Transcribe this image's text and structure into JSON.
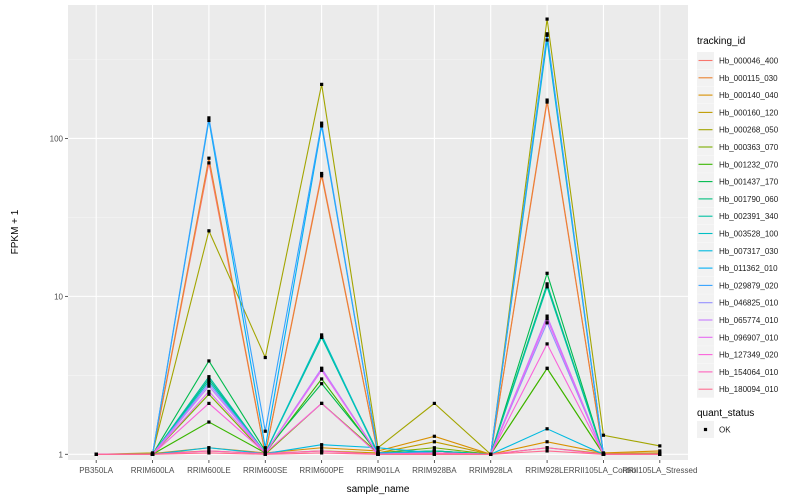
{
  "chart_data": {
    "type": "line",
    "yscale": "log10",
    "xlabel": "sample_name",
    "ylabel": "FPKM + 1",
    "ylim": [
      0.92,
      700
    ],
    "yticks": [
      1,
      10,
      100
    ],
    "ytick_labels": [
      "1",
      "10",
      "100"
    ],
    "categories": [
      "PB350LA",
      "RRIM600LA",
      "RRIM600LE",
      "RRIM600SE",
      "RRIM600PE",
      "RRIM901LA",
      "RRIM928BA",
      "RRIM928LA",
      "RRIM928LE",
      "RRII105LA_Control",
      "RRII105LA_Stressed"
    ],
    "legend_title": "tracking_id",
    "shape_legend": {
      "title": "quant_status",
      "items": [
        "OK"
      ]
    },
    "series": [
      {
        "name": "Hb_000046_400",
        "color": "#F8766D",
        "values": [
          1,
          1,
          70,
          1,
          60,
          1,
          1,
          1,
          170,
          1,
          1
        ]
      },
      {
        "name": "Hb_000115_030",
        "color": "#EA8331",
        "values": [
          1,
          1,
          75,
          1,
          58,
          1,
          1,
          1,
          175,
          1,
          1
        ]
      },
      {
        "name": "Hb_000140_040",
        "color": "#D89000",
        "values": [
          1,
          1.01,
          1.1,
          1.02,
          1.1,
          1.05,
          1.3,
          1,
          1.2,
          1.02,
          1.05
        ]
      },
      {
        "name": "Hb_000160_120",
        "color": "#C09B00",
        "values": [
          1,
          1.01,
          1.05,
          1.01,
          1.05,
          1.02,
          1.2,
          1,
          1.1,
          1.01,
          1.02
        ]
      },
      {
        "name": "Hb_000268_050",
        "color": "#A3A500",
        "values": [
          1,
          1.02,
          26,
          4.1,
          220,
          1.1,
          2.1,
          1,
          570,
          1.32,
          1.13
        ]
      },
      {
        "name": "Hb_000363_070",
        "color": "#7CAE00",
        "values": [
          1,
          1,
          2.4,
          1,
          2.1,
          1.02,
          1.1,
          1,
          3.5,
          1,
          1
        ]
      },
      {
        "name": "Hb_001232_070",
        "color": "#39B600",
        "values": [
          1,
          1,
          1.6,
          1.02,
          3,
          1,
          1.05,
          1,
          3.5,
          1,
          1
        ]
      },
      {
        "name": "Hb_001437_170",
        "color": "#00BB4E",
        "values": [
          1,
          1,
          3.9,
          1.05,
          2.8,
          1.02,
          1.05,
          1,
          14,
          1,
          1
        ]
      },
      {
        "name": "Hb_001790_060",
        "color": "#00BF7D",
        "values": [
          1,
          1,
          3,
          1.02,
          5.5,
          1.02,
          1.05,
          1,
          12,
          1,
          1
        ]
      },
      {
        "name": "Hb_002391_340",
        "color": "#00C1A3",
        "values": [
          1,
          1,
          3.1,
          1.02,
          5.5,
          1,
          1.05,
          1,
          11.5,
          1,
          1
        ]
      },
      {
        "name": "Hb_003528_100",
        "color": "#00BFC4",
        "values": [
          1,
          1,
          2.9,
          1.02,
          5.7,
          1,
          1.02,
          1,
          420,
          1,
          1
        ]
      },
      {
        "name": "Hb_007317_030",
        "color": "#00BAE0",
        "values": [
          1,
          1,
          1.1,
          1.01,
          1.15,
          1.1,
          1.02,
          1,
          1.45,
          1,
          1
        ]
      },
      {
        "name": "Hb_011362_010",
        "color": "#00B0F6",
        "values": [
          1,
          1,
          130,
          1.1,
          120,
          1.02,
          1.02,
          1,
          450,
          1,
          1
        ]
      },
      {
        "name": "Hb_029879_020",
        "color": "#35A2FF",
        "values": [
          1,
          1,
          135,
          1.4,
          125,
          1.02,
          1.02,
          1,
          460,
          1,
          1
        ]
      },
      {
        "name": "Hb_046825_010",
        "color": "#9590FF",
        "values": [
          1,
          1,
          2.8,
          1.02,
          3.5,
          1,
          1.02,
          1,
          6.8,
          1,
          1
        ]
      },
      {
        "name": "Hb_065774_010",
        "color": "#C77CFF",
        "values": [
          1,
          1,
          2.7,
          1.02,
          3.5,
          1,
          1.02,
          1,
          7.5,
          1,
          1
        ]
      },
      {
        "name": "Hb_096907_010",
        "color": "#E76BF3",
        "values": [
          1,
          1,
          2.5,
          1.02,
          3.4,
          1,
          1.02,
          1,
          7.2,
          1,
          1
        ]
      },
      {
        "name": "Hb_127349_020",
        "color": "#FA62DB",
        "values": [
          1,
          1,
          2.1,
          1.02,
          2.1,
          1,
          1.02,
          1,
          5,
          1,
          1
        ]
      },
      {
        "name": "Hb_154064_010",
        "color": "#FF62BC",
        "values": [
          1,
          1,
          1.05,
          1.01,
          1.05,
          1,
          1.01,
          1,
          1.1,
          1,
          1
        ]
      },
      {
        "name": "Hb_180094_010",
        "color": "#FF6C91",
        "values": [
          1,
          1,
          1.02,
          1,
          1.02,
          1,
          1,
          1,
          1.05,
          1,
          1
        ]
      }
    ]
  }
}
